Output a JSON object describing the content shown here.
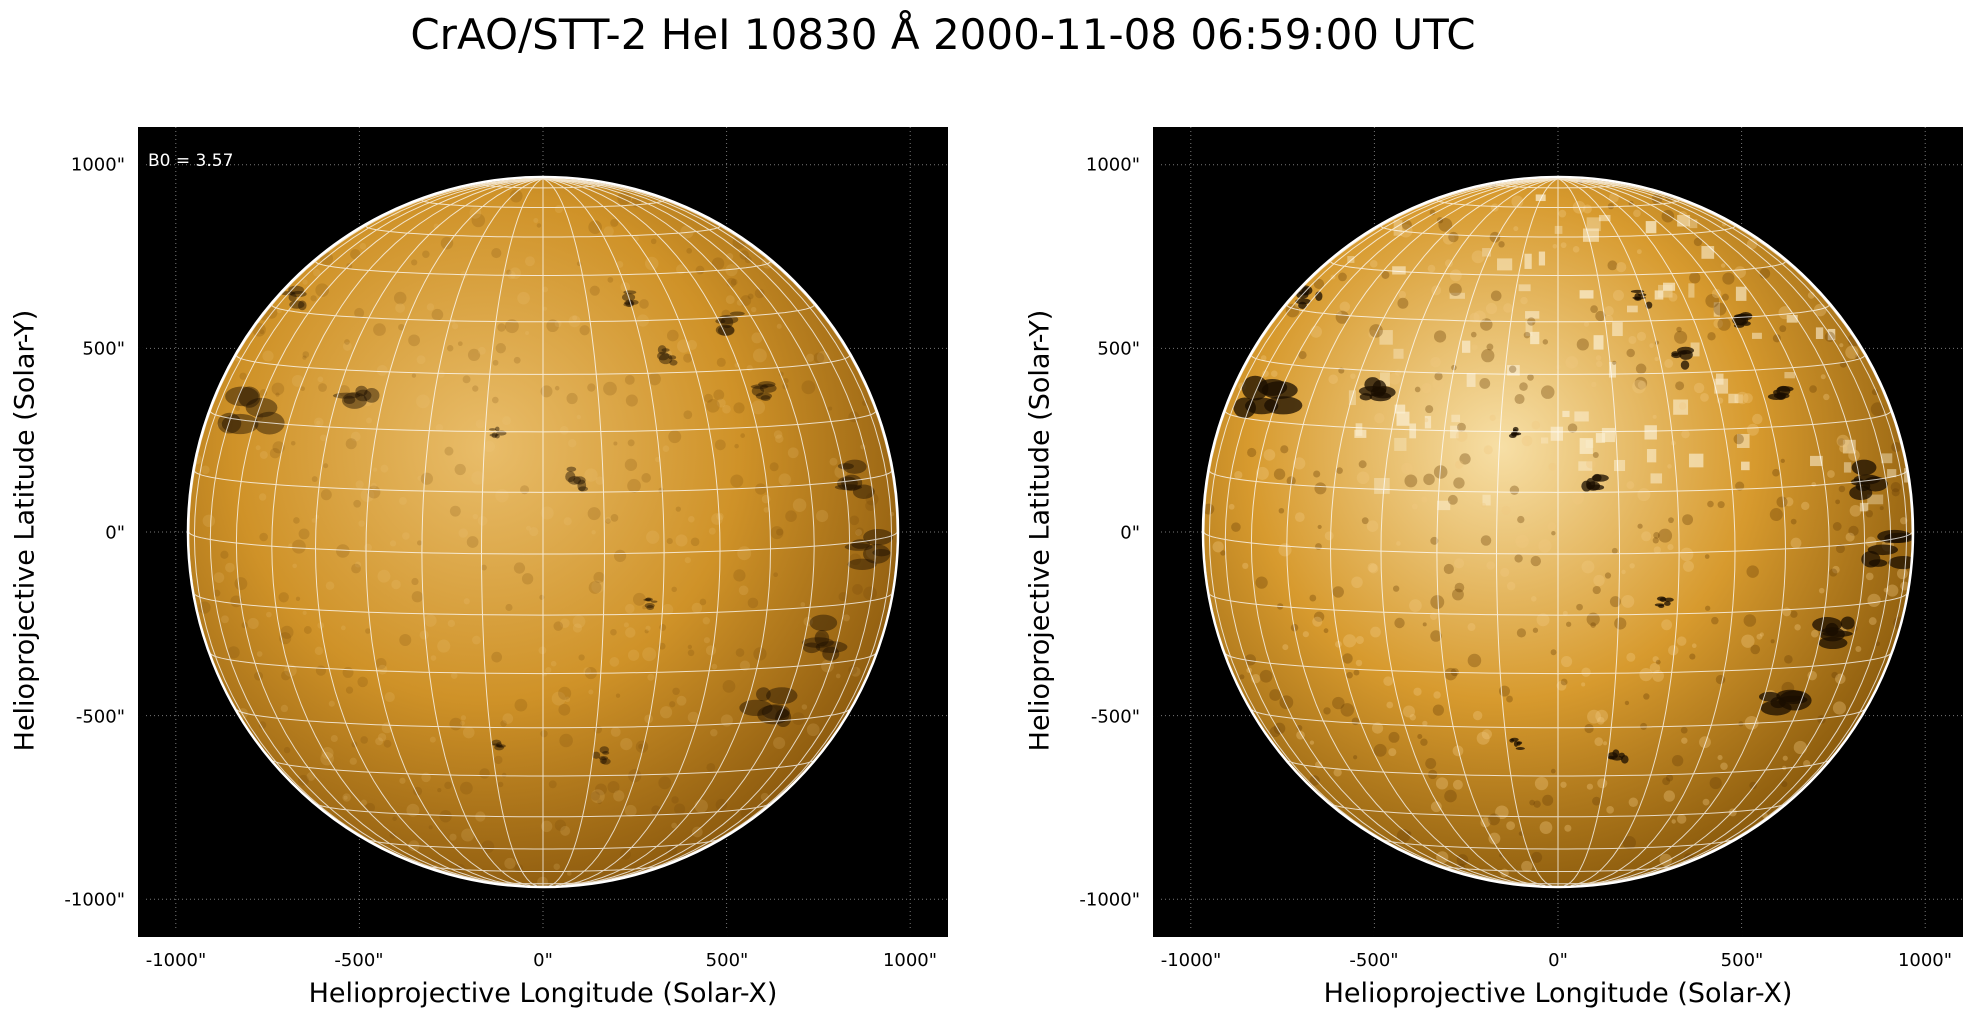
{
  "figure": {
    "title": "CrAO/STT-2 HeI 10830 Å 2000-11-08 06:59:00 UTC"
  },
  "panels": [
    {
      "annotation": "B0 = 3.57",
      "xlabel": "Helioprojective Longitude (Solar-X)",
      "ylabel": "Helioprojective Latitude (Solar-Y)",
      "xticks": [
        "-1000\"",
        "-500\"",
        "0\"",
        "500\"",
        "1000\""
      ],
      "yticks": [
        "1000\"",
        "500\"",
        "0\"",
        "-500\"",
        "-1000\""
      ],
      "colormap": "orange-heat",
      "contrast": "low"
    },
    {
      "annotation": "",
      "xlabel": "Helioprojective Longitude (Solar-X)",
      "ylabel": "Helioprojective Latitude (Solar-Y)",
      "xticks": [
        "-1000\"",
        "-500\"",
        "0\"",
        "500\"",
        "1000\""
      ],
      "yticks": [
        "1000\"",
        "500\"",
        "0\"",
        "-500\"",
        "-1000\""
      ],
      "colormap": "orange-heat",
      "contrast": "high"
    }
  ],
  "colors": {
    "background": "#000000",
    "disk_mid": "#c98a1c",
    "disk_light": "#f2cf8c",
    "grid": "#ffffff"
  }
}
